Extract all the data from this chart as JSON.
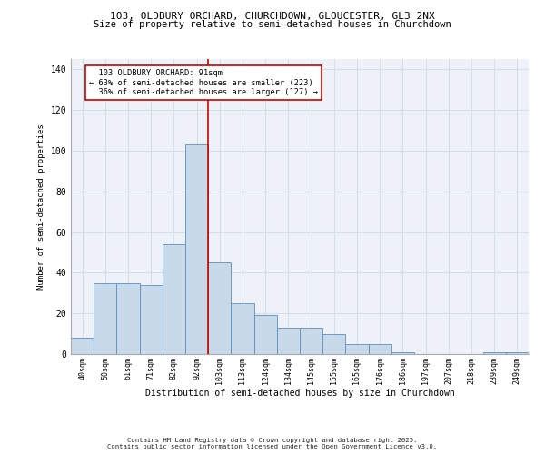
{
  "title_line1": "103, OLDBURY ORCHARD, CHURCHDOWN, GLOUCESTER, GL3 2NX",
  "title_line2": "Size of property relative to semi-detached houses in Churchdown",
  "xlabel": "Distribution of semi-detached houses by size in Churchdown",
  "ylabel": "Number of semi-detached properties",
  "bar_labels": [
    "40sqm",
    "50sqm",
    "61sqm",
    "71sqm",
    "82sqm",
    "92sqm",
    "103sqm",
    "113sqm",
    "124sqm",
    "134sqm",
    "145sqm",
    "155sqm",
    "165sqm",
    "176sqm",
    "186sqm",
    "197sqm",
    "207sqm",
    "218sqm",
    "239sqm",
    "249sqm"
  ],
  "bar_values": [
    8,
    35,
    35,
    34,
    54,
    103,
    45,
    25,
    19,
    13,
    13,
    10,
    5,
    5,
    1,
    0,
    0,
    0,
    1,
    1
  ],
  "bar_color": "#c8d9ea",
  "bar_edge_color": "#5a8fc0",
  "grid_color": "#d5dfe8",
  "background_color": "#eef2f8",
  "property_label": "103 OLDBURY ORCHARD: 91sqm",
  "pct_smaller": 63,
  "pct_smaller_count": 223,
  "pct_larger": 36,
  "pct_larger_count": 127,
  "vline_color": "#cc0000",
  "annotation_box_color": "#ffffff",
  "annotation_box_edge": "#cc0000",
  "ylim": [
    0,
    145
  ],
  "yticks": [
    0,
    20,
    40,
    60,
    80,
    100,
    120,
    140
  ],
  "footer_line1": "Contains HM Land Registry data © Crown copyright and database right 2025.",
  "footer_line2": "Contains public sector information licensed under the Open Government Licence v3.0."
}
